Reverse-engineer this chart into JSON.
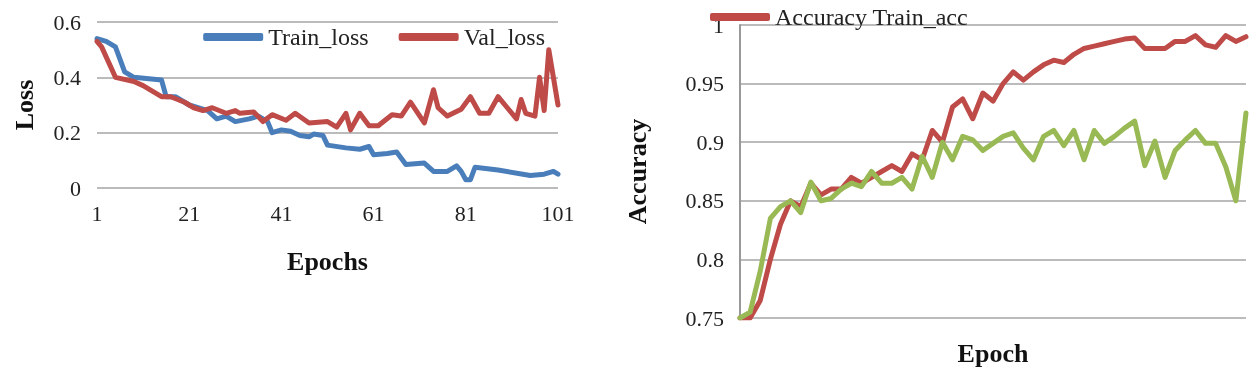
{
  "chart_data": [
    {
      "type": "line",
      "xlabel": "Epochs",
      "ylabel": "Loss",
      "xlim": [
        1,
        101
      ],
      "xticks": [
        1,
        21,
        41,
        61,
        81,
        101
      ],
      "ylim": [
        0,
        0.6
      ],
      "yticks": [
        0,
        0.2,
        0.4,
        0.6
      ],
      "grid": "y",
      "legend": "top right",
      "line_style": "solid",
      "series": [
        {
          "name": "Train_loss",
          "color": "#4a7ebb",
          "x": [
            1,
            3,
            5,
            7,
            9,
            15,
            16,
            18,
            21,
            25,
            27,
            29,
            31,
            34,
            36,
            38,
            39,
            41,
            43,
            45,
            47,
            48,
            50,
            51,
            55,
            58,
            60,
            61,
            64,
            66,
            68,
            72,
            74,
            77,
            79,
            80,
            81,
            82,
            83,
            88,
            95,
            98,
            100,
            101
          ],
          "values": [
            0.54,
            0.53,
            0.51,
            0.42,
            0.4,
            0.39,
            0.33,
            0.33,
            0.3,
            0.28,
            0.25,
            0.26,
            0.24,
            0.25,
            0.26,
            0.24,
            0.2,
            0.21,
            0.205,
            0.19,
            0.185,
            0.195,
            0.19,
            0.155,
            0.145,
            0.14,
            0.15,
            0.12,
            0.125,
            0.13,
            0.085,
            0.09,
            0.06,
            0.06,
            0.08,
            0.06,
            0.03,
            0.03,
            0.075,
            0.065,
            0.045,
            0.05,
            0.06,
            0.05
          ]
        },
        {
          "name": "Val_loss",
          "color": "#be4b48",
          "x": [
            1,
            2,
            5,
            9,
            11,
            15,
            17,
            20,
            22,
            24,
            26,
            29,
            31,
            32,
            35,
            37,
            39,
            42,
            44,
            47,
            51,
            53,
            55,
            56,
            58,
            60,
            62,
            65,
            67,
            69,
            72,
            74,
            75,
            77,
            80,
            82,
            84,
            86,
            88,
            90,
            92,
            93,
            94,
            96,
            97,
            98,
            99,
            101
          ],
          "values": [
            0.53,
            0.51,
            0.4,
            0.385,
            0.37,
            0.33,
            0.33,
            0.31,
            0.29,
            0.28,
            0.29,
            0.27,
            0.28,
            0.27,
            0.275,
            0.24,
            0.265,
            0.245,
            0.27,
            0.235,
            0.24,
            0.22,
            0.27,
            0.21,
            0.27,
            0.225,
            0.225,
            0.265,
            0.26,
            0.31,
            0.235,
            0.355,
            0.29,
            0.26,
            0.285,
            0.33,
            0.27,
            0.27,
            0.33,
            0.29,
            0.25,
            0.32,
            0.27,
            0.26,
            0.4,
            0.28,
            0.5,
            0.3
          ]
        }
      ]
    },
    {
      "type": "line",
      "xlabel": "Epoch",
      "ylabel": "Accuracy",
      "categories": [
        null,
        null,
        null,
        null,
        null,
        null,
        null,
        null,
        null,
        null,
        null,
        null,
        null,
        null,
        null,
        null,
        null,
        null,
        null,
        null,
        null,
        null,
        null,
        null,
        null,
        null,
        null,
        null,
        null,
        null,
        null,
        null,
        null,
        null,
        null,
        null,
        null,
        null,
        null,
        null,
        null,
        null,
        null,
        null,
        null,
        null,
        null,
        null,
        null,
        null,
        null
      ],
      "ylim": [
        0.75,
        1
      ],
      "yticks": [
        0.75,
        0.8,
        0.85,
        0.9,
        0.95,
        1
      ],
      "grid": "y",
      "legend": "top",
      "tick_labels": "y",
      "line_style": "solid",
      "series": [
        {
          "name": "Accuracy Train_acc",
          "color": "#be4b48",
          "values": [
            0.75,
            0.75,
            0.765,
            0.8,
            0.83,
            0.85,
            0.845,
            0.865,
            0.855,
            0.86,
            0.86,
            0.87,
            0.865,
            0.87,
            0.875,
            0.88,
            0.875,
            0.89,
            0.885,
            0.91,
            0.9,
            0.93,
            0.937,
            0.92,
            0.942,
            0.935,
            0.95,
            0.96,
            0.953,
            0.96,
            0.966,
            0.97,
            0.968,
            0.975,
            0.98,
            0.982,
            0.984,
            0.986,
            0.988,
            0.989,
            0.98,
            0.98,
            0.98,
            0.986,
            0.986,
            0.991,
            0.983,
            0.981,
            0.991,
            0.986,
            0.99
          ]
        },
        {
          "color": "#98b954",
          "values": [
            0.75,
            0.755,
            0.79,
            0.835,
            0.845,
            0.85,
            0.84,
            0.866,
            0.85,
            0.852,
            0.86,
            0.865,
            0.862,
            0.875,
            0.865,
            0.865,
            0.87,
            0.86,
            0.888,
            0.87,
            0.9,
            0.885,
            0.905,
            0.902,
            0.893,
            0.899,
            0.905,
            0.908,
            0.895,
            0.885,
            0.905,
            0.91,
            0.897,
            0.91,
            0.885,
            0.91,
            0.899,
            0.905,
            0.912,
            0.918,
            0.88,
            0.901,
            0.87,
            0.893,
            0.902,
            0.91,
            0.899,
            0.899,
            0.879,
            0.85,
            0.925
          ]
        }
      ]
    }
  ]
}
